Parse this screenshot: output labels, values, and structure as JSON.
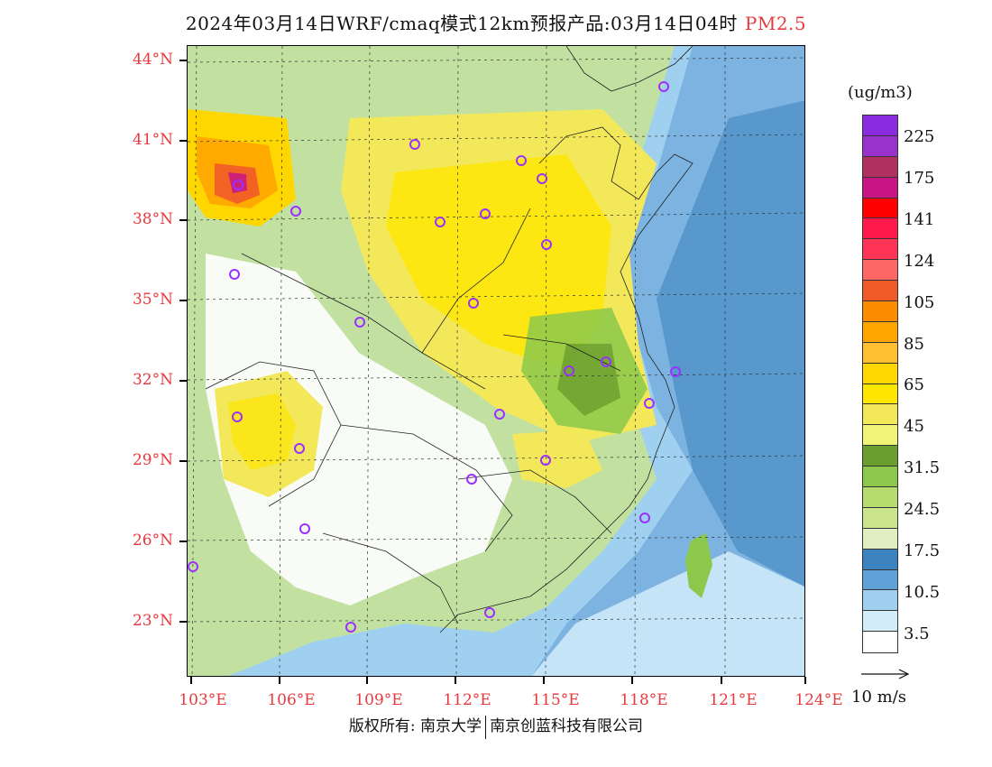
{
  "title": {
    "main": "2024年03月14日WRF/cmaq模式12km预报产品:03月14日04时",
    "pollutant": "PM2.5"
  },
  "axes": {
    "lat_labels": [
      "44°N",
      "41°N",
      "38°N",
      "35°N",
      "32°N",
      "29°N",
      "26°N",
      "23°N"
    ],
    "lon_labels": [
      "103°E",
      "106°E",
      "109°E",
      "112°E",
      "115°E",
      "118°E",
      "121°E",
      "124°E"
    ]
  },
  "colorbar": {
    "unit": "(ug/m3)",
    "labels": [
      "225",
      "175",
      "141",
      "124",
      "105",
      "85",
      "65",
      "45",
      "31.5",
      "24.5",
      "17.5",
      "10.5",
      "3.5"
    ],
    "colors": [
      "#8a2be2",
      "#9932cc",
      "#b03060",
      "#c71585",
      "#ff0000",
      "#ff1a4b",
      "#ff3355",
      "#ff6666",
      "#f05a28",
      "#ff8c00",
      "#ffa500",
      "#ffbf30",
      "#ffd700",
      "#ffe600",
      "#f2e85a",
      "#f0f57a",
      "#6a9e2e",
      "#8cc84b",
      "#b6dc6e",
      "#cbe58d",
      "#dfeec0",
      "#3c82be",
      "#5fa0d7",
      "#9fd0f0",
      "#d3ecfa",
      "#ffffff"
    ]
  },
  "wind_reference": {
    "label": "10 m/s"
  },
  "footer": {
    "left": "版权所有: 南京大学",
    "right": "南京创蓝科技有限公司"
  }
}
